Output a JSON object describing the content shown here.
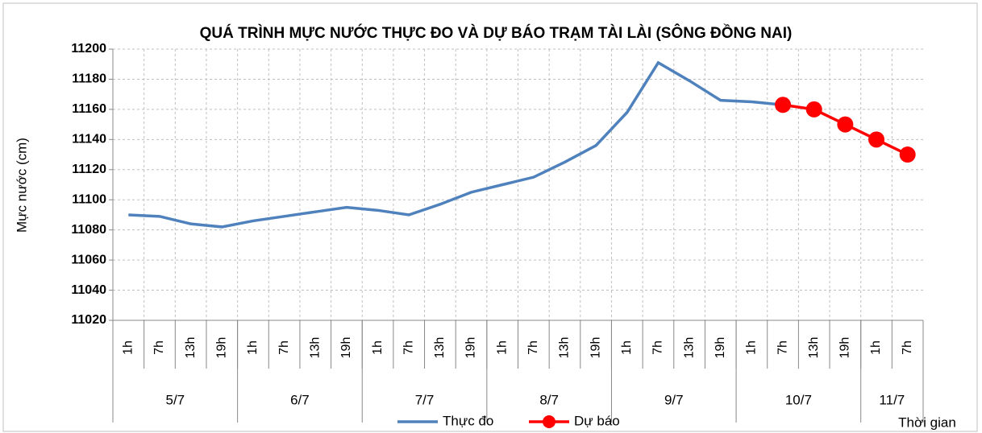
{
  "chart_data": {
    "type": "line",
    "title": "QUÁ TRÌNH MỰC NƯỚC THỰC ĐO VÀ DỰ BÁO TRẠM TÀI LÀI (SÔNG ĐỒNG NAI)",
    "y_label": "Mực nước (cm)",
    "x_label": "Thời gian",
    "category_groups": [
      {
        "label": "5/7",
        "categories": [
          "1h",
          "7h",
          "13h",
          "19h"
        ]
      },
      {
        "label": "6/7",
        "categories": [
          "1h",
          "7h",
          "13h",
          "19h"
        ]
      },
      {
        "label": "7/7",
        "categories": [
          "1h",
          "7h",
          "13h",
          "19h"
        ]
      },
      {
        "label": "8/7",
        "categories": [
          "1h",
          "7h",
          "13h",
          "19h"
        ]
      },
      {
        "label": "9/7",
        "categories": [
          "1h",
          "7h",
          "13h",
          "19h"
        ]
      },
      {
        "label": "10/7",
        "categories": [
          "1h",
          "7h",
          "13h",
          "19h"
        ]
      },
      {
        "label": "11/7",
        "categories": [
          "1h",
          "7h"
        ]
      }
    ],
    "series": [
      {
        "name": "Thực đo",
        "color": "#4f81bd",
        "marker": false,
        "values": [
          11090,
          11089,
          11084,
          11082,
          11086,
          11089,
          11092,
          11095,
          11093,
          11090,
          11097,
          11105,
          11110,
          11115,
          11125,
          11136,
          11158,
          11191,
          11179,
          11166,
          11165,
          11163,
          null,
          null,
          null,
          null
        ]
      },
      {
        "name": "Dự báo",
        "color": "#ff0000",
        "marker": true,
        "values": [
          null,
          null,
          null,
          null,
          null,
          null,
          null,
          null,
          null,
          null,
          null,
          null,
          null,
          null,
          null,
          null,
          null,
          null,
          null,
          null,
          null,
          11163,
          11160,
          11150,
          11140,
          11130
        ]
      }
    ],
    "ylim": [
      11020,
      11200
    ],
    "yticks": [
      11020,
      11040,
      11060,
      11080,
      11100,
      11120,
      11140,
      11160,
      11180,
      11200
    ],
    "grid": true
  }
}
